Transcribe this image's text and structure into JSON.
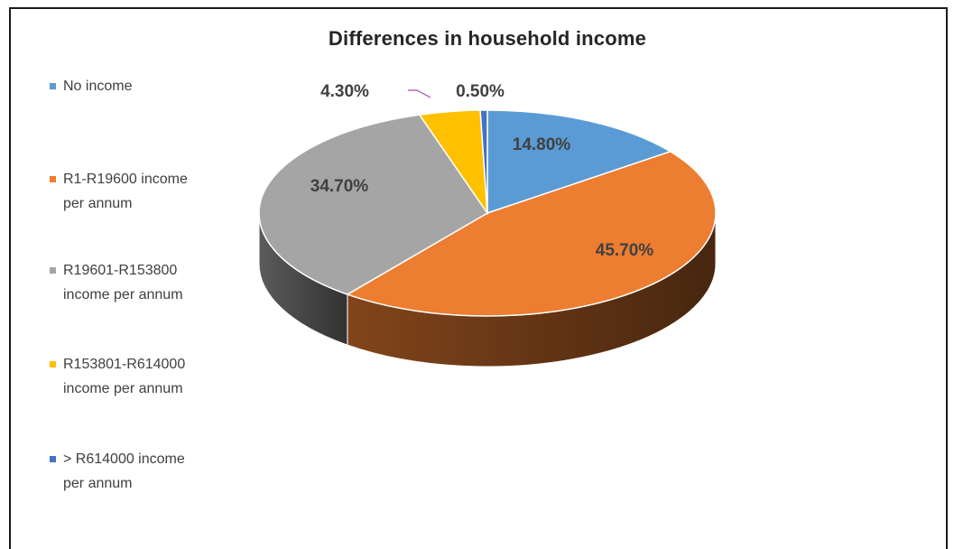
{
  "chart_data": {
    "type": "pie",
    "title": "Differences in household income",
    "legend_position": "left",
    "slices": [
      {
        "label": "No income",
        "value": 14.8,
        "display": "14.80%",
        "color": "#5B9BD5"
      },
      {
        "label": "R1-R19600 income per annum",
        "value": 45.7,
        "display": "45.70%",
        "color": "#ED7D31"
      },
      {
        "label": "R19601-R153800 income per annum",
        "value": 34.7,
        "display": "34.70%",
        "color": "#A5A5A5"
      },
      {
        "label": "R153801-R614000 income per annum",
        "value": 4.3,
        "display": "4.30%",
        "color": "#FFC000"
      },
      {
        "label": "> R614000 income per annum",
        "value": 0.5,
        "display": "0.50%",
        "color": "#4472C4"
      }
    ]
  },
  "legend": {
    "items": [
      {
        "text": "No income",
        "color": "#5B9BD5"
      },
      {
        "text": "R1-R19600 income\nper annum",
        "color": "#ED7D31"
      },
      {
        "text": "R19601-R153800\nincome per annum",
        "color": "#A5A5A5"
      },
      {
        "text": "R153801-R614000\nincome per annum",
        "color": "#FFC000"
      },
      {
        "text": "> R614000 income\nper annum",
        "color": "#4472C4"
      }
    ]
  }
}
